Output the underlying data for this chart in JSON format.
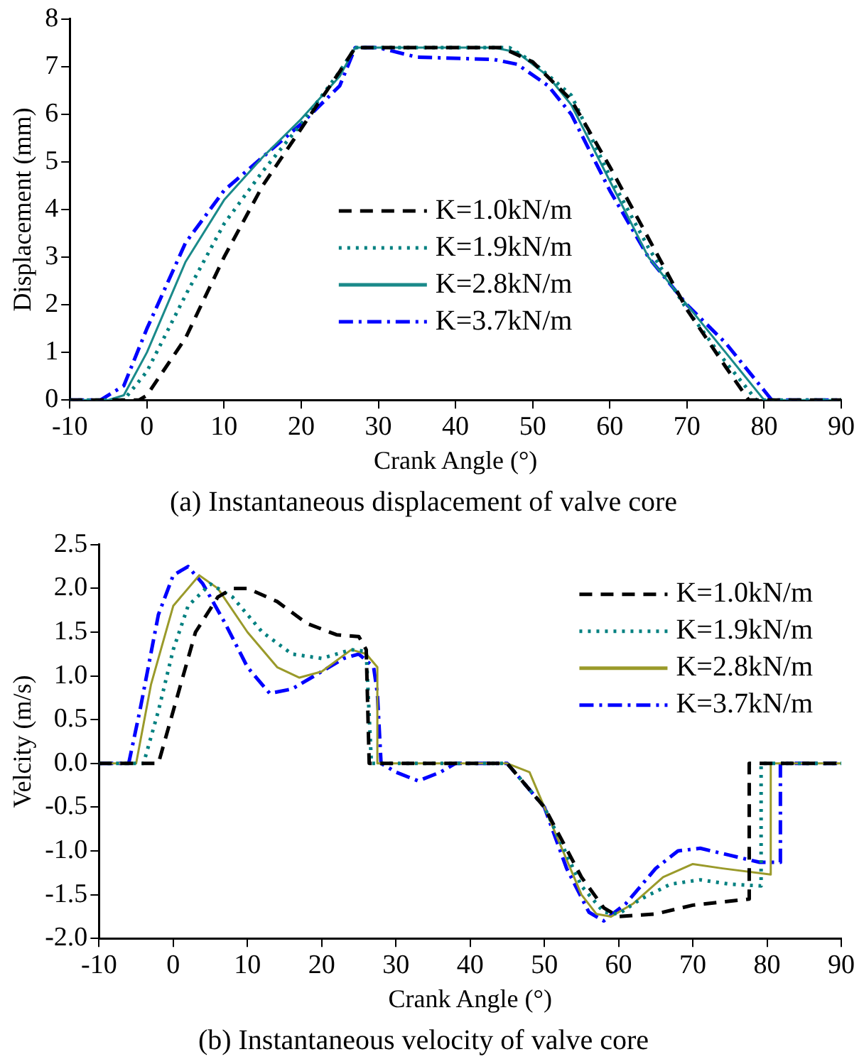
{
  "chart_data": [
    {
      "type": "line",
      "title": "(a) Instantaneous displacement of valve core",
      "xlabel": "Crank Angle (°)",
      "ylabel": "Displacement (mm)",
      "xlim": [
        -10,
        90
      ],
      "xticks": [
        -10,
        0,
        10,
        20,
        30,
        40,
        50,
        60,
        70,
        80,
        90
      ],
      "ylim": [
        0,
        8
      ],
      "yticks": [
        0,
        1,
        2,
        3,
        4,
        5,
        6,
        7,
        8
      ],
      "grid": false,
      "legend": "center",
      "marker": "none",
      "series": [
        {
          "name": "K=1.0kN/m",
          "color": "#000000",
          "line_style": "dashed",
          "x": [
            -10,
            -1,
            0,
            5,
            10,
            15,
            20,
            25,
            27,
            46,
            50,
            55,
            60,
            65,
            70,
            75,
            78,
            90
          ],
          "values": [
            0,
            0,
            0.1,
            1.3,
            3.0,
            4.5,
            5.7,
            6.9,
            7.4,
            7.4,
            7.1,
            6.3,
            4.9,
            3.4,
            1.9,
            0.7,
            0,
            0
          ]
        },
        {
          "name": "K=1.9kN/m",
          "color": "#008080",
          "line_style": "dotted",
          "x": [
            -10,
            -3,
            0,
            5,
            10,
            15,
            20,
            25,
            27,
            47,
            50,
            55,
            60,
            65,
            70,
            75,
            79,
            90
          ],
          "values": [
            0,
            0,
            0.6,
            2.2,
            3.7,
            4.8,
            5.8,
            6.9,
            7.4,
            7.4,
            7.1,
            6.4,
            4.7,
            3.2,
            1.9,
            0.8,
            0,
            0
          ]
        },
        {
          "name": "K=2.8kN/m",
          "color": "#1a8a8a",
          "line_style": "solid",
          "x": [
            -10,
            -5,
            -3,
            0,
            5,
            10,
            15,
            20,
            25,
            27,
            45,
            48,
            52,
            55,
            60,
            65,
            70,
            75,
            80,
            90
          ],
          "values": [
            0,
            0,
            0.1,
            1.0,
            2.9,
            4.2,
            5.1,
            5.9,
            6.8,
            7.4,
            7.4,
            7.3,
            6.8,
            6.2,
            4.6,
            3.0,
            2.0,
            1.0,
            0,
            0
          ]
        },
        {
          "name": "K=3.7kN/m",
          "color": "#0000ff",
          "line_style": "dashdot",
          "x": [
            -10,
            -6,
            -3,
            0,
            5,
            10,
            15,
            20,
            25,
            27,
            30,
            35,
            45,
            48,
            52,
            55,
            60,
            65,
            70,
            75,
            80,
            81,
            90
          ],
          "values": [
            0,
            0,
            0.3,
            1.5,
            3.3,
            4.4,
            5.1,
            5.8,
            6.6,
            7.4,
            7.4,
            7.2,
            7.15,
            7.05,
            6.6,
            6.0,
            4.4,
            3.0,
            2.0,
            1.2,
            0.2,
            0,
            0
          ]
        }
      ]
    },
    {
      "type": "line",
      "title": "(b) Instantaneous velocity of valve core",
      "xlabel": "Crank Angle (°)",
      "ylabel": "Velcity (m/s)",
      "xlim": [
        -10,
        90
      ],
      "xticks": [
        -10,
        0,
        10,
        20,
        30,
        40,
        50,
        60,
        70,
        80,
        90
      ],
      "ylim": [
        -2,
        2.5
      ],
      "yticks": [
        {
          "value": -2,
          "label": "-2.0"
        },
        -1.5,
        {
          "value": -1,
          "label": "-1.0"
        },
        -0.5,
        {
          "value": 0,
          "label": "0.0"
        },
        0.5,
        {
          "value": 1,
          "label": "1.0"
        },
        1.5,
        {
          "value": 2,
          "label": "2.0"
        },
        2.5
      ],
      "grid": false,
      "legend": "top right",
      "marker": "none",
      "series": [
        {
          "name": "K=1.0kN/m",
          "color": "#000000",
          "line_style": "dashed",
          "x": [
            -10,
            -2,
            0,
            3,
            6,
            8,
            10,
            14,
            18,
            22,
            25,
            26,
            26.4,
            45,
            50,
            55,
            58,
            60,
            65,
            70,
            77.6,
            77.6,
            90
          ],
          "values": [
            0,
            0,
            0.6,
            1.5,
            1.9,
            2.0,
            2.0,
            1.85,
            1.6,
            1.47,
            1.45,
            1.3,
            0,
            0,
            -0.5,
            -1.3,
            -1.65,
            -1.75,
            -1.72,
            -1.62,
            -1.55,
            0,
            0
          ]
        },
        {
          "name": "K=1.9kN/m",
          "color": "#008080",
          "line_style": "dotted",
          "x": [
            -10,
            -4,
            -2,
            0,
            2,
            5,
            8,
            12,
            16,
            20,
            24,
            26,
            26.7,
            45,
            50,
            55,
            58,
            60,
            63,
            67,
            71,
            75,
            79.2,
            79.2,
            90
          ],
          "values": [
            0,
            0,
            0.6,
            1.3,
            1.8,
            2.05,
            1.9,
            1.5,
            1.25,
            1.2,
            1.3,
            1.28,
            0,
            0,
            -0.5,
            -1.4,
            -1.7,
            -1.72,
            -1.55,
            -1.38,
            -1.33,
            -1.38,
            -1.4,
            0,
            0
          ]
        },
        {
          "name": "K=2.8kN/m",
          "color": "#9a9a2a",
          "line_style": "solid",
          "x": [
            -10,
            -5,
            -3,
            0,
            3.5,
            6,
            10,
            14,
            17,
            20,
            24,
            26,
            27.5,
            27.5,
            45,
            48,
            52,
            55,
            57,
            59,
            62,
            66,
            70,
            74,
            80.5,
            80.5,
            90
          ],
          "values": [
            0,
            0,
            0.9,
            1.8,
            2.15,
            2.0,
            1.5,
            1.1,
            0.98,
            1.05,
            1.3,
            1.25,
            1.1,
            0,
            0,
            -0.1,
            -0.9,
            -1.5,
            -1.72,
            -1.75,
            -1.6,
            -1.3,
            -1.15,
            -1.2,
            -1.27,
            0,
            0
          ]
        },
        {
          "name": "K=3.7kN/m",
          "color": "#0000ff",
          "line_style": "dashdot",
          "x": [
            -10,
            -6,
            -4.5,
            -2,
            0,
            2,
            4,
            7,
            10,
            13,
            16,
            20,
            23,
            25,
            27,
            27.5,
            28,
            30,
            33,
            36,
            38,
            45,
            50,
            53,
            56,
            58,
            61,
            65,
            68,
            71,
            75,
            79,
            81.8,
            81.8,
            90
          ],
          "values": [
            0,
            0,
            0.6,
            1.7,
            2.15,
            2.25,
            2.05,
            1.6,
            1.1,
            0.8,
            0.85,
            1.05,
            1.2,
            1.25,
            1.1,
            0.8,
            0,
            -0.1,
            -0.2,
            -0.1,
            0,
            0,
            -0.5,
            -1.2,
            -1.7,
            -1.8,
            -1.6,
            -1.2,
            -1.0,
            -0.97,
            -1.05,
            -1.13,
            -1.13,
            0,
            0
          ]
        }
      ]
    }
  ]
}
